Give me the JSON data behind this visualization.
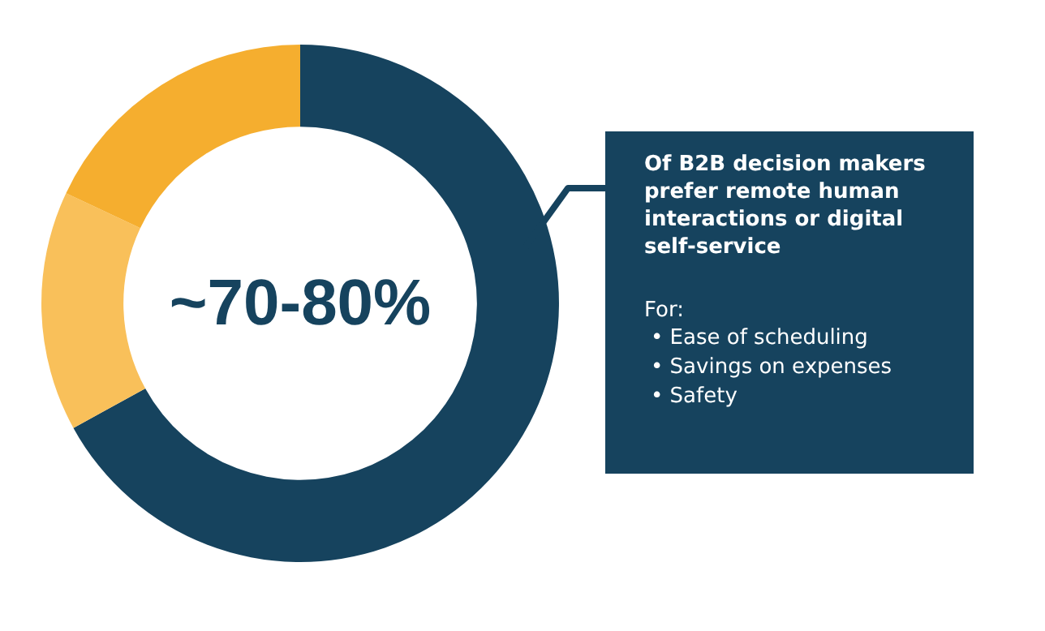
{
  "chart_data": {
    "type": "donut",
    "categories": [
      null,
      null,
      null
    ],
    "values": [
      67,
      15,
      18
    ],
    "colors": [
      "#16435e",
      "#f9c05a",
      "#f5ae2f"
    ],
    "annotations": [
      "~70-80%",
      "Of B2B decision makers prefer remote human interactions or digital self-service",
      "For:",
      "• Ease of scheduling",
      "• Savings on expenses",
      "• Safety"
    ]
  }
}
